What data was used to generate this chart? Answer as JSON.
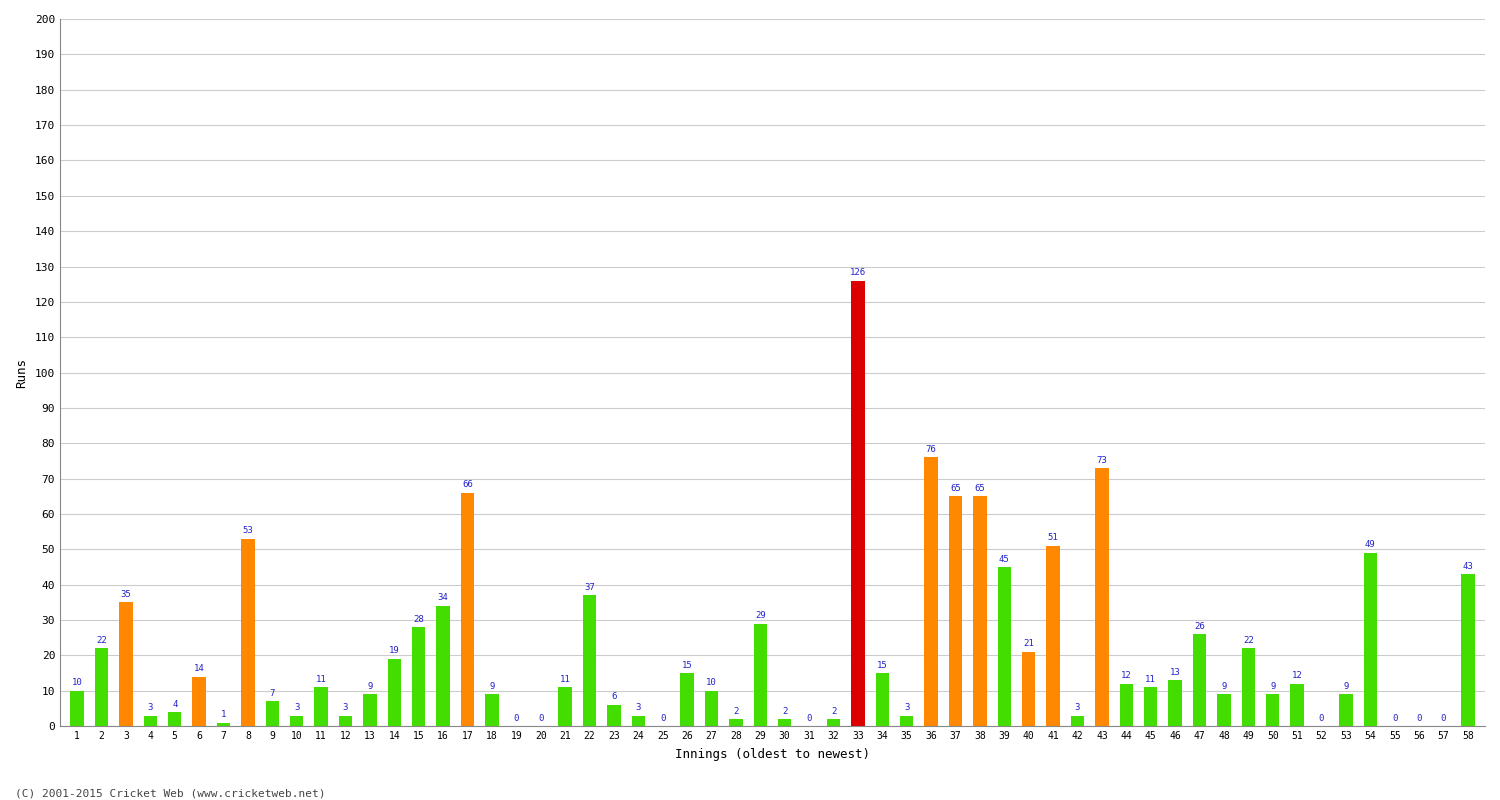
{
  "xlabel": "Innings (oldest to newest)",
  "ylabel": "Runs",
  "background_color": "#ffffff",
  "grid_color": "#cccccc",
  "bar_color_green": "#44dd00",
  "bar_color_orange": "#ff8800",
  "bar_color_red": "#dd0000",
  "label_color": "#2222cc",
  "innings": [
    1,
    2,
    3,
    4,
    5,
    6,
    7,
    8,
    9,
    10,
    11,
    12,
    13,
    14,
    15,
    16,
    17,
    18,
    19,
    20,
    21,
    22,
    23,
    24,
    25,
    26,
    27,
    28,
    29,
    30,
    31,
    32,
    33,
    34,
    35,
    36,
    37,
    38,
    39,
    40,
    41,
    42,
    43,
    44,
    45,
    46,
    47,
    48,
    49,
    50,
    51,
    52,
    53,
    54,
    55,
    56,
    57,
    58
  ],
  "values": [
    10,
    22,
    35,
    3,
    4,
    14,
    1,
    53,
    7,
    3,
    11,
    3,
    9,
    19,
    28,
    34,
    66,
    9,
    0,
    0,
    11,
    37,
    6,
    3,
    0,
    15,
    10,
    2,
    29,
    2,
    0,
    2,
    126,
    15,
    3,
    76,
    65,
    65,
    45,
    21,
    51,
    3,
    73,
    12,
    11,
    13,
    26,
    9,
    22,
    9,
    12,
    0,
    9,
    49,
    0,
    0,
    0,
    43
  ],
  "colors": [
    "green",
    "green",
    "orange",
    "green",
    "green",
    "orange",
    "green",
    "orange",
    "green",
    "green",
    "green",
    "green",
    "green",
    "green",
    "green",
    "green",
    "orange",
    "green",
    "green",
    "green",
    "green",
    "green",
    "green",
    "green",
    "green",
    "green",
    "green",
    "green",
    "green",
    "green",
    "green",
    "green",
    "red",
    "green",
    "green",
    "orange",
    "orange",
    "orange",
    "green",
    "orange",
    "orange",
    "green",
    "orange",
    "green",
    "green",
    "green",
    "green",
    "green",
    "green",
    "green",
    "green",
    "green",
    "green",
    "green",
    "green",
    "green",
    "green",
    "green"
  ],
  "ylim": [
    0,
    200
  ],
  "yticks": [
    0,
    10,
    20,
    30,
    40,
    50,
    60,
    70,
    80,
    90,
    100,
    110,
    120,
    130,
    140,
    150,
    160,
    170,
    180,
    190,
    200
  ],
  "footer": "(C) 2001-2015 Cricket Web (www.cricketweb.net)"
}
